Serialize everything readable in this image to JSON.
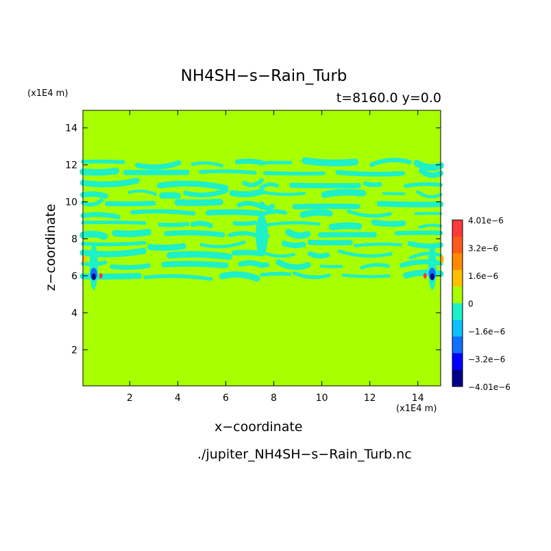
{
  "chart_data": {
    "type": "heatmap",
    "title": "NH4SH−s−Rain_Turb",
    "time_label": "t=8160.0 y=0.0",
    "xlabel": "x−coordinate",
    "ylabel": "z−coordinate",
    "x_unit": "(x1E4 m)",
    "z_unit": "(x1E4 m)",
    "file_label": "./jupiter_NH4SH−s−Rain_Turb.nc",
    "xlim": [
      0.05,
      14.95
    ],
    "ylim": [
      0.05,
      14.95
    ],
    "x_ticks": [
      "2",
      "4",
      "6",
      "8",
      "10",
      "12",
      "14"
    ],
    "z_ticks": [
      "2",
      "4",
      "6",
      "8",
      "10",
      "12",
      "14"
    ],
    "background_value": 0,
    "turbulent_band_z": [
      5.9,
      12.2
    ],
    "colorbar": {
      "labels": [
        "4.01e−6",
        "3.2e−6",
        "1.6e−6",
        "0",
        "−1.6e−6",
        "−3.2e−6",
        "−4.01e−6"
      ],
      "colors": [
        "#ff3a3a",
        "#ff5a1a",
        "#ff8a00",
        "#ffc000",
        "#a8ff00",
        "#1ef0c8",
        "#0ec0ff",
        "#1070ff",
        "#0000ff",
        "#00008a"
      ],
      "level_colors": {
        "neg_small": "#1ef0c8",
        "neg_medium": "#0ec0ff",
        "neg_large": "#1070ff",
        "neg_very_large": "#0000ff",
        "neg_max": "#00008a",
        "pos_small": "#ffc000",
        "pos_medium": "#ff8a00",
        "pos_large": "#ff3a3a",
        "zero": "#a8ff00"
      }
    }
  }
}
